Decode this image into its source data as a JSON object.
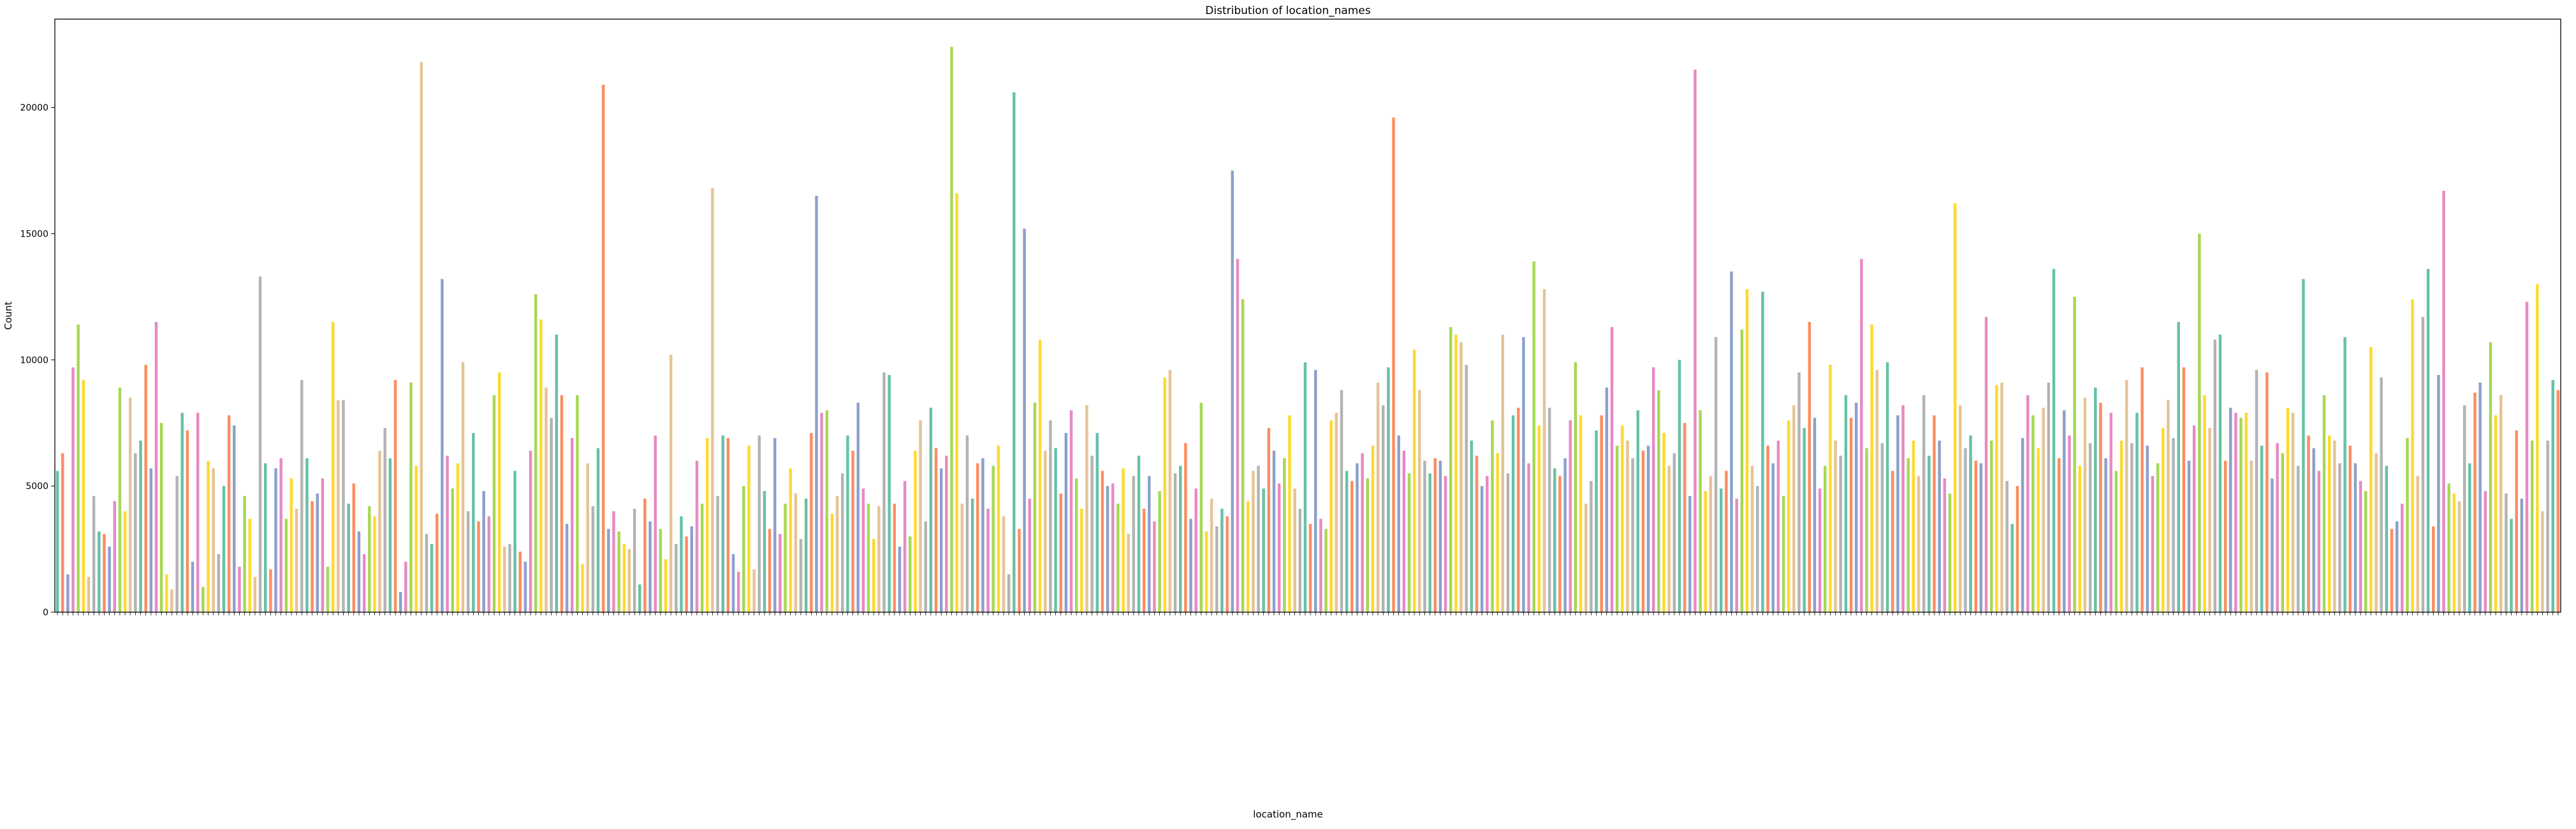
{
  "chart_data": {
    "type": "bar",
    "title": "Distribution of location_names",
    "xlabel": "location_name",
    "ylabel": "Count",
    "ylim": [
      0,
      23500
    ],
    "yticks": [
      0,
      5000,
      10000,
      15000,
      20000
    ],
    "grid": false,
    "legend": "none",
    "palette": [
      "#66c2a5",
      "#fc8d62",
      "#8da0cb",
      "#e78ac3",
      "#a6d854",
      "#ffd92f",
      "#e5c494",
      "#b3b3b3"
    ],
    "values": [
      5600,
      6300,
      1500,
      9700,
      11400,
      9200,
      1400,
      4600,
      3200,
      3100,
      2600,
      4400,
      8900,
      4000,
      8500,
      6300,
      6800,
      9800,
      5700,
      11500,
      7500,
      1500,
      900,
      5400,
      7900,
      7200,
      2000,
      7900,
      1000,
      6000,
      5700,
      2300,
      5000,
      7800,
      7400,
      1800,
      4600,
      3700,
      1400,
      13300,
      5900,
      1700,
      5700,
      6100,
      3700,
      5300,
      4100,
      9200,
      6100,
      4400,
      4700,
      5300,
      1800,
      11500,
      8400,
      8400,
      4300,
      5100,
      3200,
      2300,
      4200,
      3800,
      6400,
      7300,
      6100,
      9200,
      800,
      2000,
      9100,
      5800,
      21800,
      3100,
      2700,
      3900,
      13200,
      6200,
      4900,
      5900,
      9900,
      4000,
      7100,
      3600,
      4800,
      3800,
      8600,
      9500,
      2600,
      2700,
      5600,
      2400,
      2000,
      6400,
      12600,
      11600,
      8900,
      7700,
      11000,
      8600,
      3500,
      6900,
      8600,
      1900,
      5900,
      4200,
      6500,
      20900,
      3300,
      4000,
      3200,
      2700,
      2500,
      4100,
      1100,
      4500,
      3600,
      7000,
      3300,
      2100,
      10200,
      2700,
      3800,
      3000,
      3400,
      6000,
      4300,
      6900,
      16800,
      4600,
      7000,
      6900,
      2300,
      1600,
      5000,
      6600,
      1700,
      7000,
      4800,
      3300,
      6900,
      3100,
      4300,
      5700,
      4700,
      2900,
      4500,
      7100,
      16500,
      7900,
      8000,
      3900,
      4600,
      5500,
      7000,
      6400,
      8300,
      4900,
      4300,
      2900,
      4200,
      9500,
      9400,
      4300,
      2600,
      5200,
      3000,
      6400,
      7600,
      3600,
      8100,
      6500,
      5700,
      6200,
      22400,
      16600,
      4300,
      7000,
      4500,
      5900,
      6100,
      4100,
      5800,
      6600,
      3800,
      1500,
      20600,
      3300,
      15200,
      4500,
      8300,
      10800,
      6400,
      7600,
      6500,
      4700,
      7100,
      8000,
      5300,
      4100,
      8200,
      6200,
      7100,
      5600,
      5000,
      5100,
      4300,
      5700,
      3100,
      5400,
      6200,
      4100,
      5400,
      3600,
      4800,
      9300,
      9600,
      5500,
      5800,
      6700,
      3700,
      4900,
      8300,
      3200,
      4500,
      3400,
      4100,
      3800,
      17500,
      14000,
      12400,
      4400,
      5600,
      5800,
      4900,
      7300,
      6400,
      5100,
      6100,
      7800,
      4900,
      4100,
      9900,
      3500,
      9600,
      3700,
      3300,
      7600,
      7900,
      8800,
      5600,
      5200,
      5900,
      6300,
      5300,
      6600,
      9100,
      8200,
      9700,
      19600,
      7000,
      6400,
      5500,
      10400,
      8800,
      6000,
      5500,
      6100,
      6000,
      5400,
      11300,
      11000,
      10700,
      9800,
      6800,
      6200,
      5000,
      5400,
      7600,
      6300,
      11000,
      5500,
      7800,
      8100,
      10900,
      5900,
      13900,
      7400,
      12800,
      8100,
      5700,
      5400,
      6100,
      7600,
      9900,
      7800,
      4300,
      5200,
      7200,
      7800,
      8900,
      11300,
      6600,
      7400,
      6800,
      6100,
      8000,
      6400,
      6600,
      9700,
      8800,
      7100,
      5800,
      6300,
      10000,
      7500,
      4600,
      21500,
      8000,
      4800,
      5400,
      10900,
      4900,
      5600,
      13500,
      4500,
      11200,
      12800,
      5800,
      5000,
      12700,
      6600,
      5900,
      6800,
      4600,
      7600,
      8200,
      9500,
      7300,
      11500,
      7700,
      4900,
      5800,
      9800,
      6800,
      6200,
      8600,
      7700,
      8300,
      14000,
      6500,
      11400,
      9600,
      6700,
      9900,
      5600,
      7800,
      8200,
      6100,
      6800,
      5400,
      8600,
      6200,
      7800,
      6800,
      5300,
      4700,
      16200,
      8200,
      6500,
      7000,
      6000,
      5900,
      11700,
      6800,
      9000,
      9100,
      5200,
      3500,
      5000,
      6900,
      8600,
      7800,
      6500,
      8100,
      9100,
      13600,
      6100,
      8000,
      7000,
      12500,
      5800,
      8500,
      6700,
      8900,
      8300,
      6100,
      7900,
      5600,
      6800,
      9200,
      6700,
      7900,
      9700,
      6600,
      5400,
      5900,
      7300,
      8400,
      6900,
      11500,
      9700,
      6000,
      7400,
      15000,
      8600,
      7300,
      10800,
      11000,
      6000,
      8100,
      7900,
      7700,
      7900,
      6000,
      9600,
      6600,
      9500,
      5300,
      6700,
      6300,
      8100,
      7900,
      5800,
      13200,
      7000,
      6500,
      5600,
      8600,
      7000,
      6800,
      5900,
      10900,
      6600,
      5900,
      5200,
      4800,
      10500,
      6300,
      9300,
      5800,
      3300,
      3600,
      4300,
      6900,
      12400,
      5400,
      11700,
      13600,
      3400,
      9400,
      16700,
      5100,
      4700,
      4400,
      8200,
      5900,
      8700,
      9100,
      4800,
      10700,
      7800,
      8600,
      4700,
      3700,
      7200,
      4500,
      12300,
      6800,
      13000,
      4000,
      6800,
      9200,
      8800
    ]
  }
}
